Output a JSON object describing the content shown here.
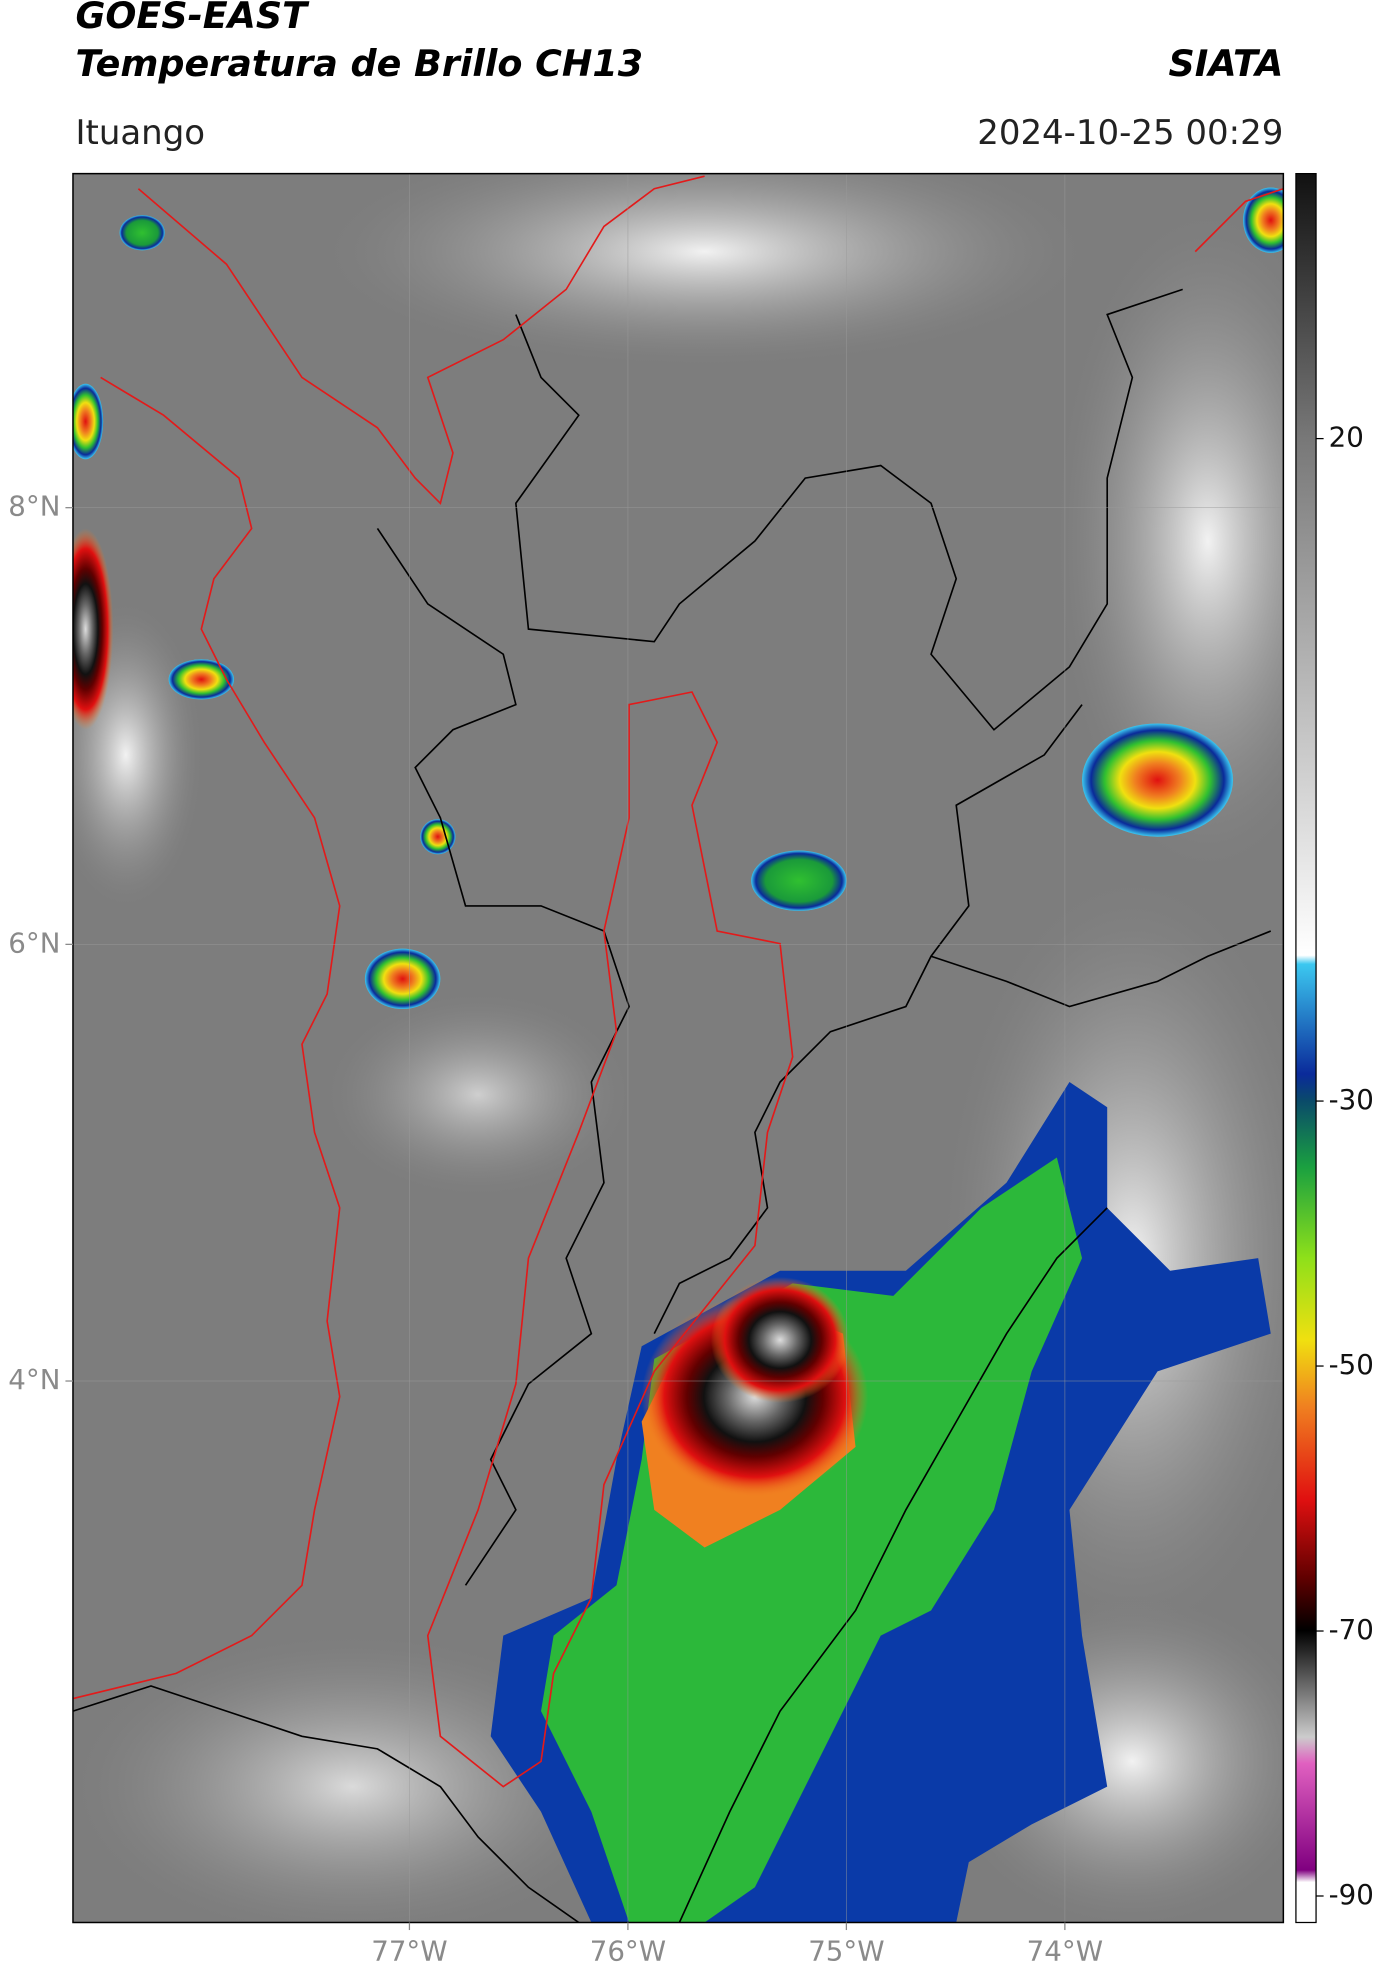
{
  "header": {
    "title": "GOES-EAST",
    "subtitle": "Temperatura de Brillo CH13",
    "source": "SIATA",
    "location": "Ituango",
    "datetime": "2024-10-25 00:29"
  },
  "map": {
    "xlim": [
      -78.54,
      -73.0
    ],
    "ylim": [
      1.52,
      9.53
    ],
    "xticks": [
      {
        "value": -77,
        "label": "77°W"
      },
      {
        "value": -76,
        "label": "76°W"
      },
      {
        "value": -75,
        "label": "75°W"
      },
      {
        "value": -74,
        "label": "74°W"
      }
    ],
    "yticks": [
      {
        "value": 8,
        "label": "8°N"
      },
      {
        "value": 6,
        "label": "6°N"
      },
      {
        "value": 4,
        "label": "4°N"
      }
    ],
    "grid": true
  },
  "colorbar": {
    "lim": [
      -92,
      40
    ],
    "ticks": [
      20,
      -30,
      -50,
      -70,
      -90
    ]
  }
}
